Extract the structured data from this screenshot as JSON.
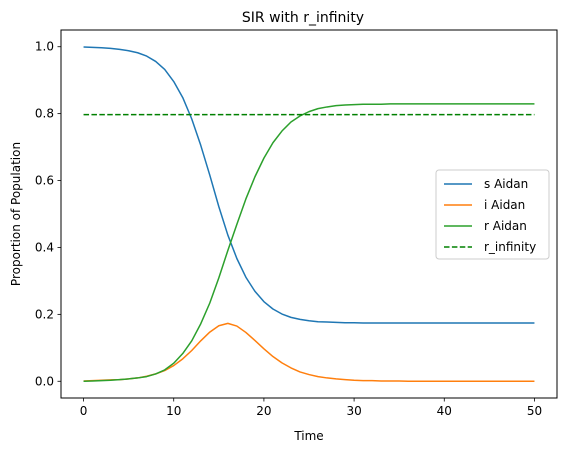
{
  "chart_data": {
    "type": "line",
    "title": "SIR with r_infinity",
    "xlabel": "Time",
    "ylabel": "Proportion of Population",
    "xlim": [
      -2.5,
      52.5
    ],
    "ylim": [
      -0.05,
      1.05
    ],
    "xticks": [
      0,
      10,
      20,
      30,
      40,
      50
    ],
    "yticks": [
      0.0,
      0.2,
      0.4,
      0.6,
      0.8,
      1.0
    ],
    "xtick_labels": [
      "0",
      "10",
      "20",
      "30",
      "40",
      "50"
    ],
    "ytick_labels": [
      "0.0",
      "0.2",
      "0.4",
      "0.6",
      "0.8",
      "1.0"
    ],
    "grid": false,
    "legend_position": "center-right",
    "x": [
      0,
      1,
      2,
      3,
      4,
      5,
      6,
      7,
      8,
      9,
      10,
      11,
      12,
      13,
      14,
      15,
      16,
      17,
      18,
      19,
      20,
      21,
      22,
      23,
      24,
      25,
      26,
      27,
      28,
      29,
      30,
      31,
      32,
      33,
      34,
      35,
      36,
      37,
      38,
      39,
      40,
      41,
      42,
      43,
      44,
      45,
      46,
      47,
      48,
      49,
      50
    ],
    "series": [
      {
        "name": "s Aidan",
        "color": "#1f77b4",
        "style": "solid",
        "values": [
          0.999,
          0.998,
          0.997,
          0.995,
          0.992,
          0.988,
          0.982,
          0.972,
          0.956,
          0.932,
          0.896,
          0.848,
          0.784,
          0.705,
          0.616,
          0.522,
          0.437,
          0.367,
          0.311,
          0.269,
          0.238,
          0.216,
          0.201,
          0.191,
          0.185,
          0.181,
          0.178,
          0.177,
          0.176,
          0.175,
          0.175,
          0.174,
          0.174,
          0.174,
          0.174,
          0.174,
          0.174,
          0.174,
          0.174,
          0.174,
          0.174,
          0.174,
          0.174,
          0.174,
          0.174,
          0.174,
          0.174,
          0.174,
          0.174,
          0.174,
          0.174
        ]
      },
      {
        "name": "i Aidan",
        "color": "#ff7f0e",
        "style": "solid",
        "values": [
          0.001,
          0.002,
          0.003,
          0.004,
          0.005,
          0.007,
          0.01,
          0.015,
          0.022,
          0.032,
          0.047,
          0.067,
          0.092,
          0.121,
          0.147,
          0.166,
          0.173,
          0.165,
          0.146,
          0.122,
          0.097,
          0.074,
          0.055,
          0.04,
          0.028,
          0.02,
          0.014,
          0.01,
          0.007,
          0.005,
          0.003,
          0.002,
          0.002,
          0.001,
          0.001,
          0.001,
          0.0,
          0.0,
          0.0,
          0.0,
          0.0,
          0.0,
          0.0,
          0.0,
          0.0,
          0.0,
          0.0,
          0.0,
          0.0,
          0.0,
          0.0
        ]
      },
      {
        "name": "r Aidan",
        "color": "#2ca02c",
        "style": "solid",
        "values": [
          0.0,
          0.001,
          0.002,
          0.003,
          0.005,
          0.007,
          0.01,
          0.014,
          0.022,
          0.034,
          0.054,
          0.083,
          0.121,
          0.172,
          0.234,
          0.309,
          0.391,
          0.469,
          0.545,
          0.611,
          0.667,
          0.713,
          0.748,
          0.775,
          0.793,
          0.806,
          0.815,
          0.82,
          0.824,
          0.826,
          0.827,
          0.828,
          0.828,
          0.828,
          0.829,
          0.829,
          0.829,
          0.829,
          0.829,
          0.829,
          0.829,
          0.829,
          0.829,
          0.829,
          0.829,
          0.829,
          0.829,
          0.829,
          0.829,
          0.829,
          0.829
        ]
      },
      {
        "name": "r_infinity",
        "color": "#008000",
        "style": "dashed",
        "values": [
          0.797,
          0.797,
          0.797,
          0.797,
          0.797,
          0.797,
          0.797,
          0.797,
          0.797,
          0.797,
          0.797,
          0.797,
          0.797,
          0.797,
          0.797,
          0.797,
          0.797,
          0.797,
          0.797,
          0.797,
          0.797,
          0.797,
          0.797,
          0.797,
          0.797,
          0.797,
          0.797,
          0.797,
          0.797,
          0.797,
          0.797,
          0.797,
          0.797,
          0.797,
          0.797,
          0.797,
          0.797,
          0.797,
          0.797,
          0.797,
          0.797,
          0.797,
          0.797,
          0.797,
          0.797,
          0.797,
          0.797,
          0.797,
          0.797,
          0.797,
          0.797
        ]
      }
    ]
  }
}
